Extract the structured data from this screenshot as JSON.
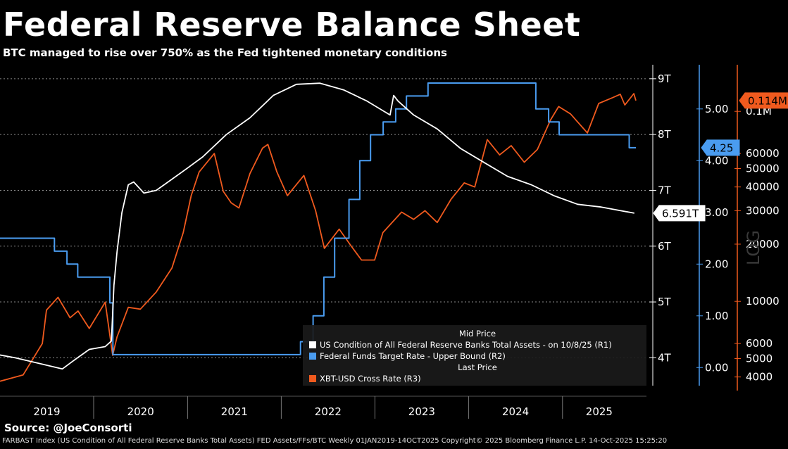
{
  "header": {
    "title": "Federal Reserve Balance Sheet",
    "subtitle": "BTC managed to rise over 750% as the Fed tightened monetary conditions"
  },
  "source": "Source: @JoeConsorti",
  "footer": "FARBAST Index (US Condition of All Federal Reserve Banks Total Assets) FED Assets/FFs/BTC Weekly 01JAN2019-14OCT2025 Copyright© 2025 Bloomberg Finance L.P. 14-Oct-2025 15:25:20",
  "watermark": "LOG",
  "colors": {
    "background": "#000000",
    "assets": "#ffffff",
    "fed_funds": "#4a9cf0",
    "btc": "#f05a1e",
    "grid": "#8a8a8a",
    "legend_bg": "#1a1a1a"
  },
  "chart_data": {
    "type": "line",
    "x_axis": {
      "ticks": [
        "2019",
        "2020",
        "2021",
        "2022",
        "2023",
        "2024",
        "2025"
      ],
      "range": [
        "2019-01-01",
        "2025-10-14"
      ]
    },
    "axes": {
      "R1": {
        "ticks": [
          "4T",
          "5T",
          "6T",
          "7T",
          "8T",
          "9T"
        ],
        "range": [
          3.5,
          9.2
        ],
        "unit": "T"
      },
      "R2": {
        "ticks": [
          "0.00",
          "1.00",
          "2.00",
          "3.00",
          "4.00",
          "5.00"
        ],
        "range": [
          -0.35,
          5.8
        ]
      },
      "R3": {
        "ticks": [
          "4000",
          "5000",
          "6000",
          "10000",
          "20000",
          "30000",
          "40000",
          "50000",
          "60000",
          "0.1M"
        ],
        "tick_values": [
          4000,
          5000,
          6000,
          10000,
          20000,
          30000,
          40000,
          50000,
          60000,
          100000
        ],
        "range": [
          3600,
          170000
        ],
        "scale": "log"
      }
    },
    "legend": {
      "header1": "Mid Price",
      "header2": "Last Price",
      "placement": "bottom-right"
    },
    "series": [
      {
        "name": "US Condition of All Federal Reserve Banks Total Assets -  on 10/8/25  (R1)",
        "axis": "R1",
        "last_label": "6.591T",
        "points": [
          [
            "2019-01-01",
            4.05
          ],
          [
            "2019-03-01",
            4.0
          ],
          [
            "2019-06-01",
            3.9
          ],
          [
            "2019-09-01",
            3.8
          ],
          [
            "2019-10-15",
            3.95
          ],
          [
            "2019-12-15",
            4.15
          ],
          [
            "2020-02-15",
            4.2
          ],
          [
            "2020-03-10",
            4.3
          ],
          [
            "2020-03-20",
            5.3
          ],
          [
            "2020-04-01",
            5.9
          ],
          [
            "2020-04-20",
            6.6
          ],
          [
            "2020-05-15",
            7.1
          ],
          [
            "2020-06-05",
            7.15
          ],
          [
            "2020-07-15",
            6.95
          ],
          [
            "2020-09-01",
            7.0
          ],
          [
            "2020-11-01",
            7.2
          ],
          [
            "2021-01-01",
            7.4
          ],
          [
            "2021-03-01",
            7.6
          ],
          [
            "2021-06-01",
            8.0
          ],
          [
            "2021-09-01",
            8.3
          ],
          [
            "2021-12-01",
            8.7
          ],
          [
            "2022-03-01",
            8.9
          ],
          [
            "2022-06-01",
            8.92
          ],
          [
            "2022-09-01",
            8.8
          ],
          [
            "2022-12-01",
            8.6
          ],
          [
            "2023-03-01",
            8.35
          ],
          [
            "2023-03-15",
            8.7
          ],
          [
            "2023-04-01",
            8.6
          ],
          [
            "2023-06-01",
            8.35
          ],
          [
            "2023-09-01",
            8.1
          ],
          [
            "2023-12-01",
            7.75
          ],
          [
            "2024-03-01",
            7.5
          ],
          [
            "2024-06-01",
            7.25
          ],
          [
            "2024-09-01",
            7.1
          ],
          [
            "2024-12-01",
            6.9
          ],
          [
            "2025-03-01",
            6.75
          ],
          [
            "2025-06-01",
            6.7
          ],
          [
            "2025-10-08",
            6.591
          ]
        ]
      },
      {
        "name": "Federal Funds Target Rate - Upper Bound  (R2)",
        "axis": "R2",
        "last_label": "4.25",
        "points": [
          [
            "2019-01-01",
            2.5
          ],
          [
            "2019-08-01",
            2.25
          ],
          [
            "2019-09-19",
            2.0
          ],
          [
            "2019-10-31",
            1.75
          ],
          [
            "2020-03-04",
            1.25
          ],
          [
            "2020-03-16",
            0.25
          ],
          [
            "2022-03-17",
            0.5
          ],
          [
            "2022-05-05",
            1.0
          ],
          [
            "2022-06-16",
            1.75
          ],
          [
            "2022-07-28",
            2.5
          ],
          [
            "2022-09-22",
            3.25
          ],
          [
            "2022-11-03",
            4.0
          ],
          [
            "2022-12-15",
            4.5
          ],
          [
            "2023-02-02",
            4.75
          ],
          [
            "2023-03-23",
            5.0
          ],
          [
            "2023-05-04",
            5.25
          ],
          [
            "2023-07-27",
            5.5
          ],
          [
            "2024-09-19",
            5.0
          ],
          [
            "2024-11-08",
            4.75
          ],
          [
            "2024-12-19",
            4.5
          ],
          [
            "2025-09-18",
            4.25
          ],
          [
            "2025-10-14",
            4.25
          ]
        ]
      },
      {
        "name": "XBT-USD Cross Rate  (R3)",
        "axis": "R3",
        "last_label": "0.114M",
        "points": [
          [
            "2019-01-01",
            3800
          ],
          [
            "2019-04-01",
            4100
          ],
          [
            "2019-06-15",
            6000
          ],
          [
            "2019-07-01",
            9000
          ],
          [
            "2019-08-15",
            10500
          ],
          [
            "2019-10-01",
            8200
          ],
          [
            "2019-11-01",
            8900
          ],
          [
            "2019-12-15",
            7200
          ],
          [
            "2020-02-15",
            9900
          ],
          [
            "2020-03-15",
            5200
          ],
          [
            "2020-04-01",
            6500
          ],
          [
            "2020-05-15",
            9300
          ],
          [
            "2020-07-01",
            9100
          ],
          [
            "2020-09-01",
            11200
          ],
          [
            "2020-11-01",
            15000
          ],
          [
            "2020-12-15",
            23000
          ],
          [
            "2021-01-15",
            36000
          ],
          [
            "2021-02-15",
            48000
          ],
          [
            "2021-04-15",
            60000
          ],
          [
            "2021-05-20",
            38000
          ],
          [
            "2021-06-20",
            33000
          ],
          [
            "2021-07-20",
            31000
          ],
          [
            "2021-09-01",
            47000
          ],
          [
            "2021-10-20",
            64000
          ],
          [
            "2021-11-10",
            67000
          ],
          [
            "2021-12-15",
            48000
          ],
          [
            "2022-01-25",
            36000
          ],
          [
            "2022-03-30",
            46000
          ],
          [
            "2022-05-15",
            30000
          ],
          [
            "2022-06-18",
            19000
          ],
          [
            "2022-08-15",
            24000
          ],
          [
            "2022-10-01",
            19500
          ],
          [
            "2022-11-10",
            16500
          ],
          [
            "2022-12-31",
            16500
          ],
          [
            "2023-02-01",
            23000
          ],
          [
            "2023-04-15",
            29500
          ],
          [
            "2023-06-01",
            27000
          ],
          [
            "2023-07-15",
            30000
          ],
          [
            "2023-09-01",
            26000
          ],
          [
            "2023-10-25",
            34500
          ],
          [
            "2023-12-15",
            42000
          ],
          [
            "2024-01-25",
            40000
          ],
          [
            "2024-03-14",
            71000
          ],
          [
            "2024-05-01",
            59000
          ],
          [
            "2024-06-15",
            66000
          ],
          [
            "2024-08-05",
            54000
          ],
          [
            "2024-09-25",
            63000
          ],
          [
            "2024-11-15",
            90000
          ],
          [
            "2024-12-17",
            106000
          ],
          [
            "2025-02-01",
            97000
          ],
          [
            "2025-04-08",
            77000
          ],
          [
            "2025-05-22",
            110000
          ],
          [
            "2025-07-15",
            118000
          ],
          [
            "2025-08-14",
            123000
          ],
          [
            "2025-09-01",
            108000
          ],
          [
            "2025-10-06",
            124000
          ],
          [
            "2025-10-14",
            114000
          ]
        ]
      }
    ]
  }
}
